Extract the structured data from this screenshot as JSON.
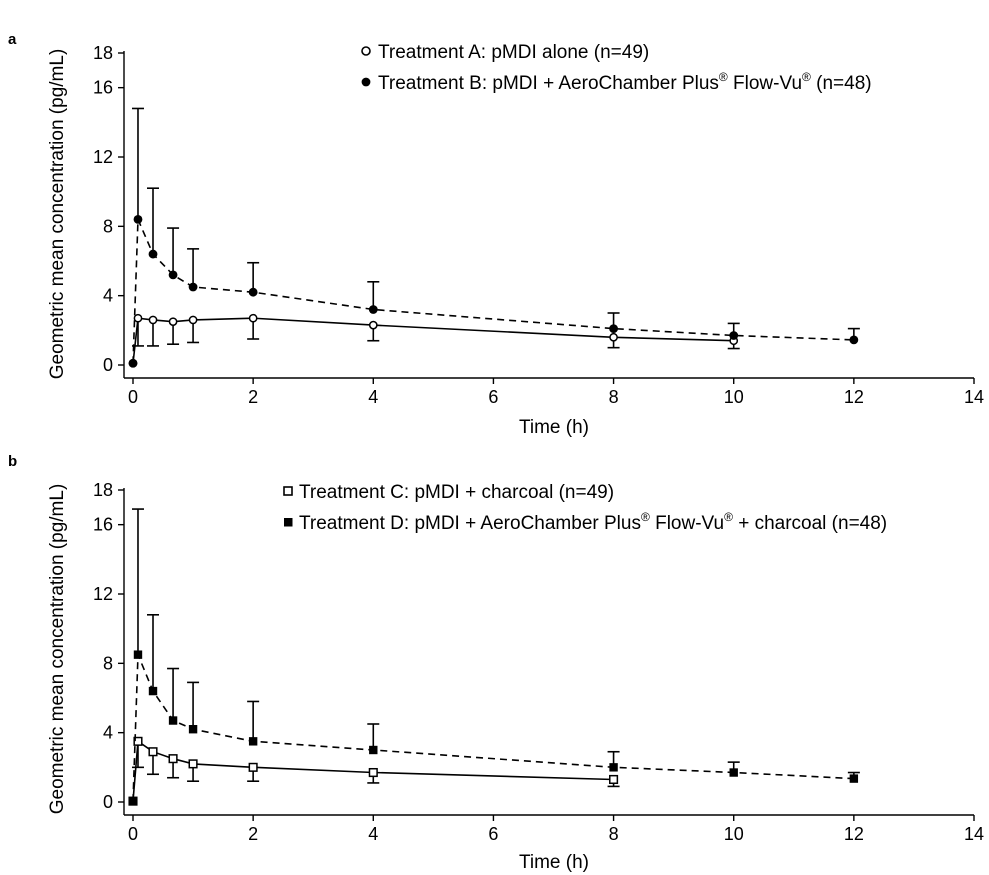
{
  "chart_data": [
    {
      "panel": "a",
      "type": "line",
      "xlabel": "Time (h)",
      "ylabel": "Geometric mean concentration (pg/mL)",
      "xlim": [
        0,
        14
      ],
      "ylim": [
        0,
        18
      ],
      "xticks": [
        0,
        2,
        4,
        6,
        8,
        10,
        12,
        14
      ],
      "yticks": [
        0,
        4,
        8,
        12,
        16,
        18
      ],
      "grid": false,
      "legend_position": "top-right",
      "series": [
        {
          "legend": {
            "main": "Treatment A: pMDI alone (n=49)"
          },
          "marker": "open-circle",
          "line": "solid",
          "x": [
            0,
            0.083,
            0.333,
            0.667,
            1,
            2,
            4,
            8,
            10
          ],
          "y": [
            0.1,
            2.7,
            2.6,
            2.5,
            2.6,
            2.7,
            2.3,
            1.6,
            1.4
          ],
          "error_upper": [
            0.1,
            2.7,
            2.6,
            2.5,
            2.6,
            2.7,
            2.3,
            1.6,
            1.4
          ],
          "error_lower": [
            0.1,
            1.1,
            1.1,
            1.2,
            1.3,
            1.5,
            1.4,
            1.0,
            0.95
          ]
        },
        {
          "legend": {
            "main": "Treatment B: pMDI + AeroChamber Plus",
            "reg1": "®",
            "mid": " Flow-Vu",
            "reg2": "®",
            "tail": " (n=48)"
          },
          "marker": "filled-circle",
          "line": "dashed",
          "x": [
            0,
            0.083,
            0.333,
            0.667,
            1,
            2,
            4,
            8,
            10,
            12
          ],
          "y": [
            0.1,
            8.4,
            6.4,
            5.2,
            4.5,
            4.2,
            3.2,
            2.1,
            1.7,
            1.45
          ],
          "error_upper": [
            0.1,
            14.8,
            10.2,
            7.9,
            6.7,
            5.9,
            4.8,
            3.0,
            2.4,
            2.1
          ],
          "error_lower": [
            0.1,
            8.4,
            6.4,
            5.2,
            4.5,
            4.2,
            3.2,
            2.1,
            1.7,
            1.45
          ]
        }
      ]
    },
    {
      "panel": "b",
      "type": "line",
      "xlabel": "Time (h)",
      "ylabel": "Geometric mean concentration (pg/mL)",
      "xlim": [
        0,
        14
      ],
      "ylim": [
        0,
        18
      ],
      "xticks": [
        0,
        2,
        4,
        6,
        8,
        10,
        12,
        14
      ],
      "yticks": [
        0,
        4,
        8,
        12,
        16,
        18
      ],
      "grid": false,
      "legend_position": "top-right",
      "series": [
        {
          "legend": {
            "main": "Treatment C: pMDI + charcoal (n=49)"
          },
          "marker": "open-square",
          "line": "solid",
          "x": [
            0,
            0.083,
            0.333,
            0.667,
            1,
            2,
            4,
            8
          ],
          "y": [
            0.05,
            3.5,
            2.9,
            2.5,
            2.2,
            2.0,
            1.7,
            1.3
          ],
          "error_upper": [
            0.05,
            3.5,
            2.9,
            2.5,
            2.2,
            2.0,
            1.7,
            1.3
          ],
          "error_lower": [
            0.05,
            2.0,
            1.6,
            1.4,
            1.2,
            1.2,
            1.1,
            0.9
          ]
        },
        {
          "legend": {
            "main": "Treatment D: pMDI + AeroChamber Plus",
            "reg1": "®",
            "mid": " Flow-Vu",
            "reg2": "®",
            "tail": " + charcoal (n=48)"
          },
          "marker": "filled-square",
          "line": "dashed",
          "x": [
            0,
            0.083,
            0.333,
            0.667,
            1,
            2,
            4,
            8,
            10,
            12
          ],
          "y": [
            0.05,
            8.5,
            6.4,
            4.7,
            4.2,
            3.5,
            3.0,
            2.0,
            1.7,
            1.35
          ],
          "error_upper": [
            0.05,
            16.9,
            10.8,
            7.7,
            6.9,
            5.8,
            4.5,
            2.9,
            2.3,
            1.7
          ],
          "error_lower": [
            0.05,
            8.5,
            6.4,
            4.7,
            4.2,
            3.5,
            3.0,
            2.0,
            1.7,
            1.35
          ]
        }
      ]
    }
  ]
}
